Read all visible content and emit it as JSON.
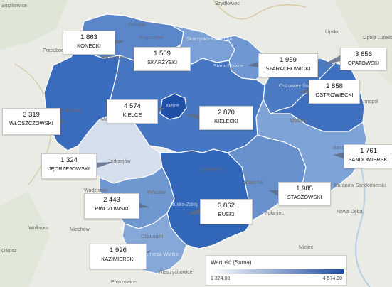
{
  "map": {
    "value_field": "Wartość (Suma)",
    "legend": {
      "title": "Wartość (Suma)",
      "min_label": "1 324.00",
      "max_label": "4 574.00",
      "min_color": "#ffffff",
      "max_color": "#1f4fa6"
    },
    "colors": {
      "background": "#e9ebe4",
      "border": "#ffffff",
      "pointer": "#5d6c86"
    },
    "regions": [
      {
        "name": "KONECKI",
        "value": "1 863",
        "fill": "#5b86c9"
      },
      {
        "name": "SKARŻYSKI",
        "value": "1 509",
        "fill": "#7aa0d6"
      },
      {
        "name": "STARACHOWICKI",
        "value": "1 959",
        "fill": "#6f98d2"
      },
      {
        "name": "OPATOWSKI",
        "value": "3 656",
        "fill": "#3f70bf"
      },
      {
        "name": "OSTROWIECKI",
        "value": "2 858",
        "fill": "#4c7bc4"
      },
      {
        "name": "KIELCE",
        "value": "4 574",
        "fill": "#1f4fa6"
      },
      {
        "name": "KIELECKI",
        "value": "2 870",
        "fill": "#4777c2"
      },
      {
        "name": "WŁOSZCZOWSKI",
        "value": "3 319",
        "fill": "#3a6cbd"
      },
      {
        "name": "JĘDRZEJOWSKI",
        "value": "1 324",
        "fill": "#d6dfee"
      },
      {
        "name": "PIŃCZOWSKI",
        "value": "2 443",
        "fill": "#6f97d0"
      },
      {
        "name": "BUSKI",
        "value": "3 862",
        "fill": "#3266b8"
      },
      {
        "name": "STASZOWSKI",
        "value": "1 985",
        "fill": "#6890cd"
      },
      {
        "name": "SANDOMIERSKI",
        "value": "1 761",
        "fill": "#7ea3d6"
      },
      {
        "name": "KAZIMIERSKI",
        "value": "1 926",
        "fill": "#85a8d8"
      }
    ],
    "place_labels": [
      "Sorzkowice",
      "Szydłowiec",
      "Końskie",
      "Lipsko",
      "Opole Lubelskie",
      "Przedbórz",
      "Stąporków",
      "Radoszyce",
      "Skarżysko-Kamienna",
      "Starachowice",
      "Ostrowiec Świętokrzyski",
      "Kielce",
      "Małogoszcz",
      "Chęciny",
      "Opatów",
      "Sandomierz",
      "Jędrzejów",
      "Chmielnik",
      "Staszów",
      "Włoszczowa",
      "Wodzisław",
      "Pińczów",
      "Busko-Zdrój",
      "Połaniec",
      "Nowa Dęba",
      "Wolbrom",
      "Miechów",
      "Kazimierza Wielka",
      "Czarnocin",
      "Mielec",
      "Olkusz",
      "Proszowice",
      "Wietrzychowice",
      "Annopol",
      "Baranów Sandomierski"
    ]
  }
}
